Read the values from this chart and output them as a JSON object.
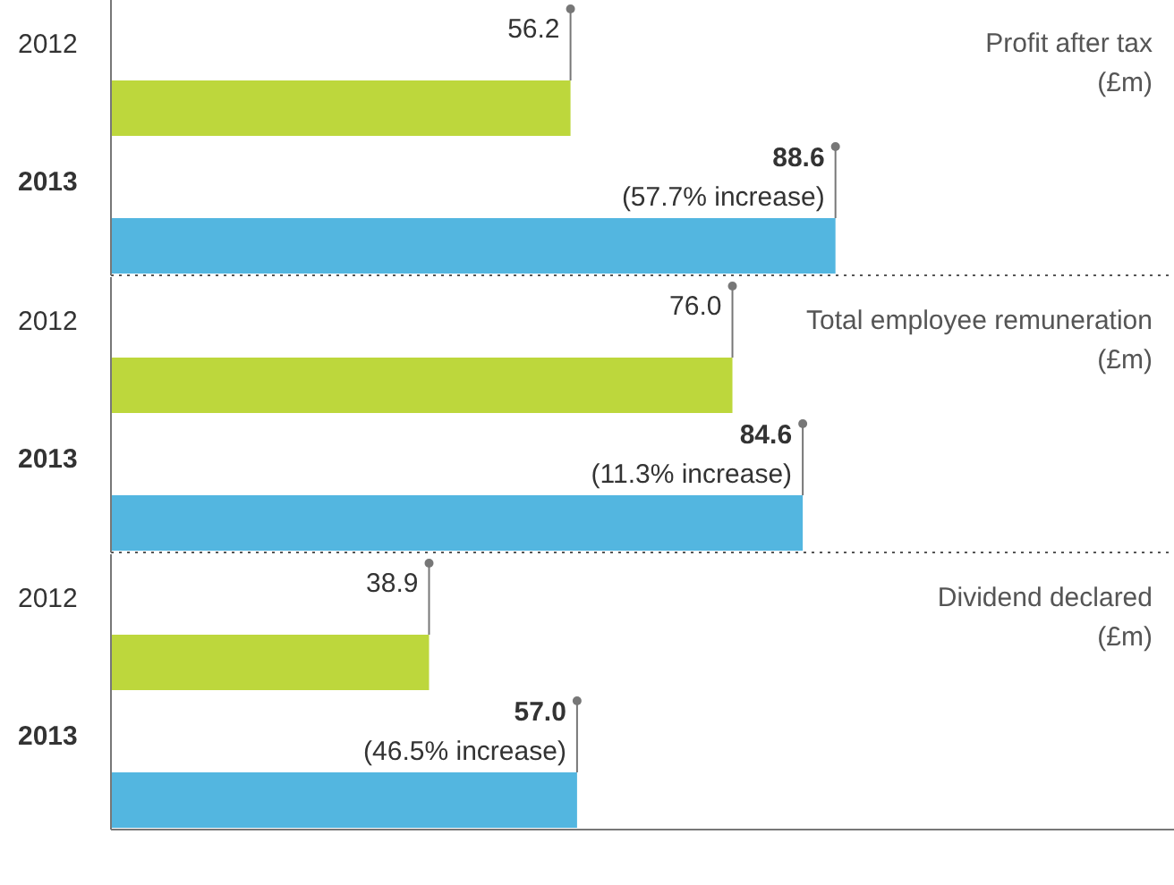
{
  "chart_data": [
    {
      "type": "bar",
      "orientation": "horizontal",
      "title": "Profit after tax (£m)",
      "categories": [
        "2012",
        "2013"
      ],
      "values": [
        56.2,
        88.6
      ],
      "value_labels": [
        "56.2",
        "88.6"
      ],
      "colors": [
        "#bdd73c",
        "#53b6e0"
      ],
      "xlim": [
        0,
        130
      ],
      "tick_labels": "y",
      "annotations": [
        {
          "text": "(57.7% increase)",
          "x": 88.6,
          "y": "2013"
        }
      ]
    },
    {
      "type": "bar",
      "orientation": "horizontal",
      "title": "Total employee remuneration (£m)",
      "categories": [
        "2012",
        "2013"
      ],
      "values": [
        76.0,
        84.6
      ],
      "value_labels": [
        "76.0",
        "84.6"
      ],
      "colors": [
        "#bdd73c",
        "#53b6e0"
      ],
      "xlim": [
        0,
        130
      ],
      "tick_labels": "y",
      "annotations": [
        {
          "text": "(11.3% increase)",
          "x": 84.6,
          "y": "2013"
        }
      ]
    },
    {
      "type": "bar",
      "orientation": "horizontal",
      "title": "Dividend declared (£m)",
      "categories": [
        "2012",
        "2013"
      ],
      "values": [
        38.9,
        57.0
      ],
      "value_labels": [
        "38.9",
        "57.0"
      ],
      "colors": [
        "#bdd73c",
        "#53b6e0"
      ],
      "xlim": [
        0,
        130
      ],
      "tick_labels": "y",
      "annotations": [
        {
          "text": "(46.5% increase)",
          "x": 57.0,
          "y": "2013"
        }
      ]
    }
  ]
}
